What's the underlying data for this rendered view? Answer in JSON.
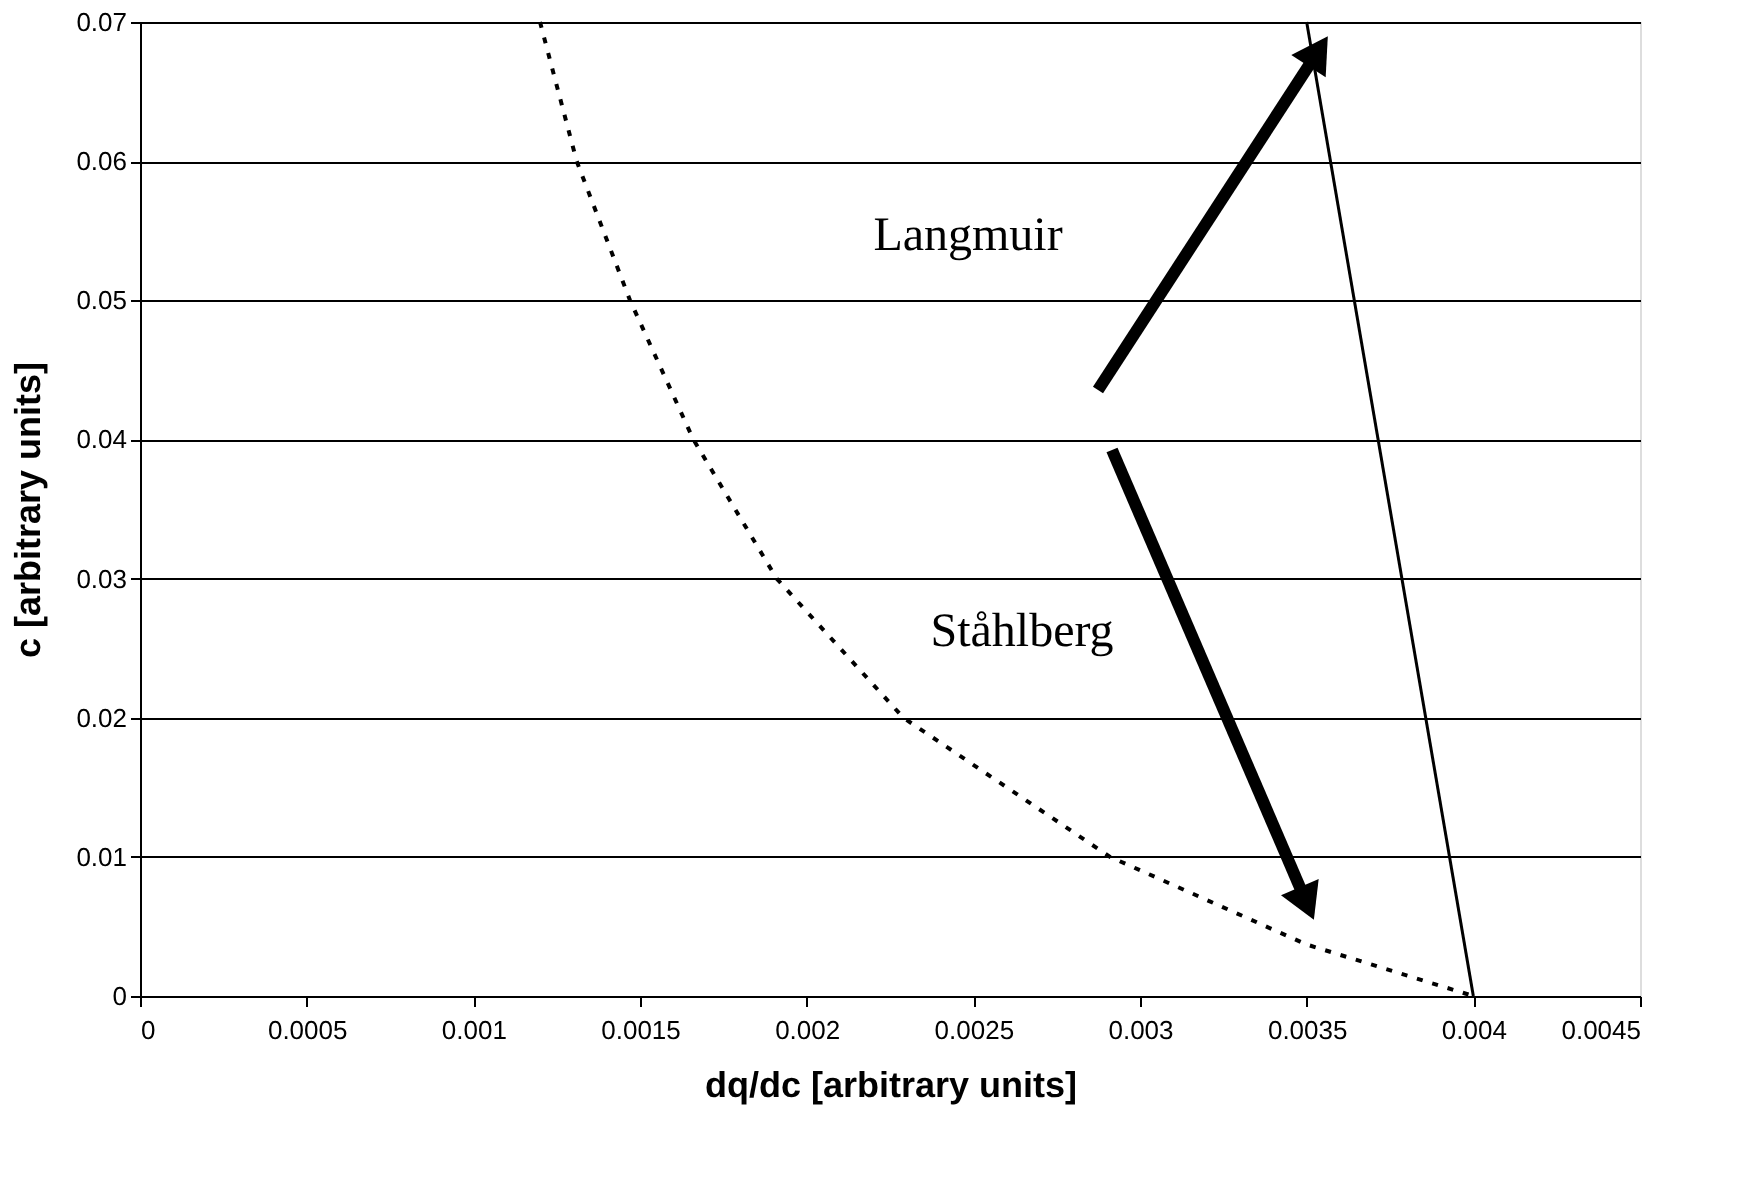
{
  "chart_data": {
    "type": "line",
    "xlabel": "dq/dc [arbitrary units]",
    "ylabel": "c [arbitrary units]",
    "xlim": [
      0,
      0.0045
    ],
    "xticks": [
      0,
      0.0005,
      0.001,
      0.0015,
      0.002,
      0.0025,
      0.003,
      0.0035,
      0.004,
      0.0045
    ],
    "ylim": [
      0,
      0.07
    ],
    "yticks": [
      0,
      0.01,
      0.02,
      0.03,
      0.04,
      0.05,
      0.06,
      0.07
    ],
    "grid": "y",
    "marker": "none",
    "series": [
      {
        "color": "#000000",
        "line_style": "solid",
        "x": [
          0.0035,
          0.004
        ],
        "values": [
          0.07,
          0
        ]
      },
      {
        "color": "#000000",
        "line_style": "dotted",
        "x": [
          0.0012,
          0.00131,
          0.00147,
          0.00166,
          0.00191,
          0.00229,
          0.00291,
          0.0035,
          0.004
        ],
        "values": [
          0.07,
          0.06,
          0.05,
          0.04,
          0.03,
          0.02,
          0.01,
          0.0037,
          0
        ]
      }
    ],
    "annotations": [
      "Langmuir",
      "Ståhlberg"
    ]
  }
}
